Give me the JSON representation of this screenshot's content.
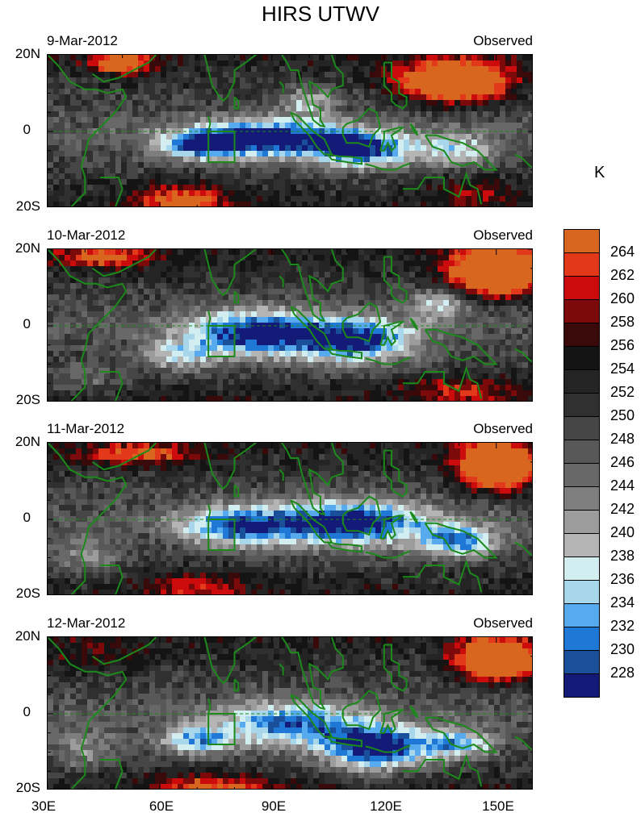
{
  "figure": {
    "title": "HIRS UTWV",
    "unit_label": "K"
  },
  "panels": [
    {
      "date": "9-Mar-2012",
      "tag": "Observed"
    },
    {
      "date": "10-Mar-2012",
      "tag": "Observed"
    },
    {
      "date": "11-Mar-2012",
      "tag": "Observed"
    },
    {
      "date": "12-Mar-2012",
      "tag": "Observed"
    }
  ],
  "axes": {
    "y_labels": [
      "20N",
      "0",
      "20S"
    ],
    "x_labels": [
      "30E",
      "60E",
      "90E",
      "120E",
      "150E"
    ],
    "lon_range": [
      30,
      160
    ],
    "lat_range": [
      -20,
      20
    ]
  },
  "colorbar": {
    "levels": [
      "264",
      "262",
      "260",
      "258",
      "256",
      "254",
      "252",
      "250",
      "248",
      "246",
      "244",
      "242",
      "240",
      "238",
      "236",
      "234",
      "232",
      "230",
      "228"
    ],
    "colors": [
      "#d8661e",
      "#e2391a",
      "#cc0c0c",
      "#7d0a0a",
      "#3a0a0a",
      "#141414",
      "#242424",
      "#303030",
      "#464646",
      "#585858",
      "#686868",
      "#7e7e7e",
      "#9c9c9c",
      "#b4b4b4",
      "#d3eef0",
      "#a8d6ea",
      "#58aaee",
      "#1f77d6",
      "#1a4f9a",
      "#141a78"
    ]
  },
  "colors": {
    "coast": "#1b8a1b",
    "box": "#1b8a1b"
  }
}
